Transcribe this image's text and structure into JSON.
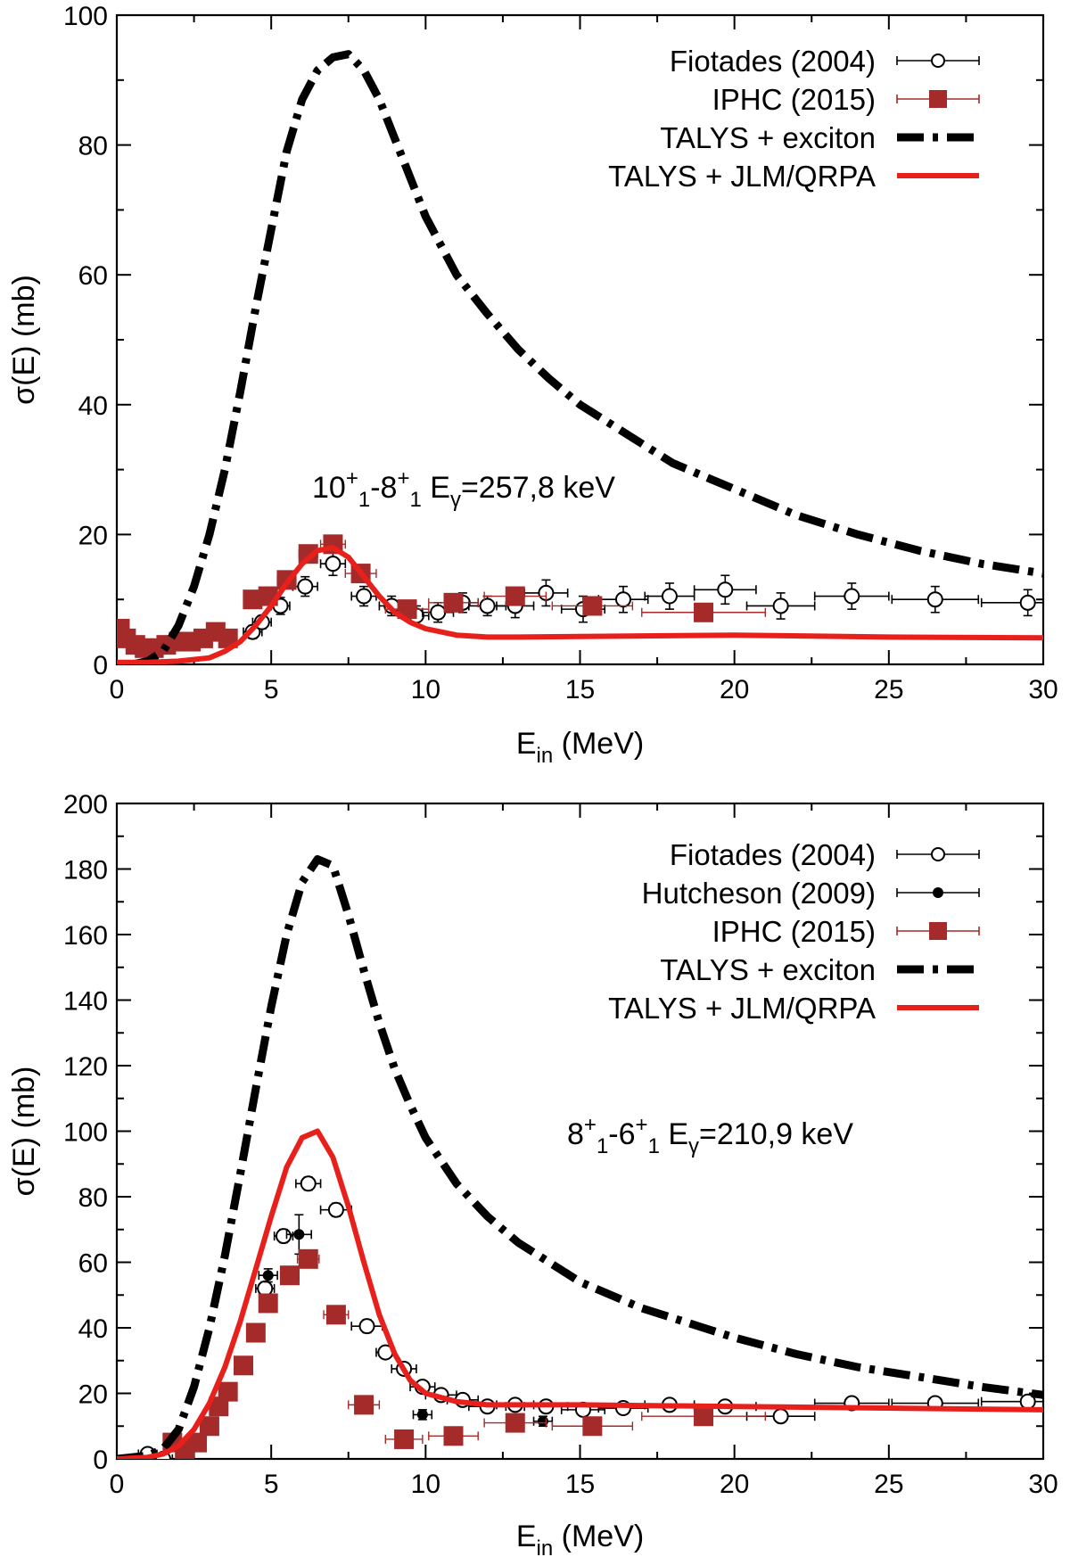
{
  "chart_data": [
    {
      "type": "line",
      "panel": "top",
      "title": "",
      "xlabel": "E_in (MeV)",
      "xlabel_main": "E",
      "xlabel_sub": "in",
      "xlabel_tail": " (MeV)",
      "ylabel": "σ(E) (mb)",
      "xlim": [
        0,
        30
      ],
      "ylim": [
        0,
        100
      ],
      "xticks": [
        0,
        5,
        10,
        15,
        20,
        25,
        30
      ],
      "yticks": [
        0,
        20,
        40,
        60,
        80,
        100
      ],
      "xtick_labels": [
        "0",
        "5",
        "10",
        "15",
        "20",
        "25",
        "30"
      ],
      "ytick_labels": [
        "0",
        "20",
        "40",
        "60",
        "80",
        "100"
      ],
      "legend_position": "top-right",
      "annotation": {
        "text": "10+1-8+1 Eγ=257,8 keV",
        "p1": "10",
        "p1_sup": "+",
        "p1_sub": "1",
        "dash": "-",
        "p2": "8",
        "p2_sup": "+",
        "p2_sub": "1",
        "e": " E",
        "e_sub": "γ",
        "e_tail": "=257,8 keV"
      },
      "series": [
        {
          "name": "Fiotades (2004)",
          "kind": "points-open-circle",
          "color": "#000000",
          "points": [
            {
              "x": 4.4,
              "y": 5,
              "xerr": 0.3,
              "yerr": 1
            },
            {
              "x": 4.7,
              "y": 6.5,
              "xerr": 0.3,
              "yerr": 1
            },
            {
              "x": 5.3,
              "y": 9,
              "xerr": 0.3,
              "yerr": 1.3
            },
            {
              "x": 6.1,
              "y": 12,
              "xerr": 0.4,
              "yerr": 1.5
            },
            {
              "x": 7.0,
              "y": 15.5,
              "xerr": 0.4,
              "yerr": 1.8
            },
            {
              "x": 8.0,
              "y": 10.5,
              "xerr": 0.4,
              "yerr": 1.5
            },
            {
              "x": 8.9,
              "y": 9,
              "xerr": 0.4,
              "yerr": 1.5
            },
            {
              "x": 9.7,
              "y": 7.5,
              "xerr": 0.4,
              "yerr": 1.5
            },
            {
              "x": 10.4,
              "y": 8,
              "xerr": 0.5,
              "yerr": 1.5
            },
            {
              "x": 11.2,
              "y": 9.5,
              "xerr": 0.5,
              "yerr": 1.5
            },
            {
              "x": 12.0,
              "y": 9,
              "xerr": 0.6,
              "yerr": 1.5
            },
            {
              "x": 12.9,
              "y": 9,
              "xerr": 0.6,
              "yerr": 1.8
            },
            {
              "x": 13.9,
              "y": 11,
              "xerr": 0.7,
              "yerr": 2
            },
            {
              "x": 15.1,
              "y": 8.5,
              "xerr": 0.7,
              "yerr": 2
            },
            {
              "x": 16.4,
              "y": 10,
              "xerr": 0.8,
              "yerr": 2
            },
            {
              "x": 17.9,
              "y": 10.5,
              "xerr": 0.8,
              "yerr": 2
            },
            {
              "x": 19.7,
              "y": 11.5,
              "xerr": 1.0,
              "yerr": 2.2
            },
            {
              "x": 21.5,
              "y": 9,
              "xerr": 1.1,
              "yerr": 2
            },
            {
              "x": 23.8,
              "y": 10.5,
              "xerr": 1.2,
              "yerr": 2
            },
            {
              "x": 26.5,
              "y": 10,
              "xerr": 1.4,
              "yerr": 2
            },
            {
              "x": 29.5,
              "y": 9.5,
              "xerr": 1.5,
              "yerr": 2
            }
          ]
        },
        {
          "name": "IPHC (2015)",
          "kind": "points-filled-square",
          "color": "#a52a2a",
          "points": [
            {
              "x": 0.1,
              "y": 5.5,
              "xerr": 0.1
            },
            {
              "x": 0.3,
              "y": 4,
              "xerr": 0.1
            },
            {
              "x": 0.6,
              "y": 3,
              "xerr": 0.1
            },
            {
              "x": 0.9,
              "y": 2.5,
              "xerr": 0.1
            },
            {
              "x": 1.2,
              "y": 2.5,
              "xerr": 0.1
            },
            {
              "x": 1.6,
              "y": 3,
              "xerr": 0.15
            },
            {
              "x": 2.0,
              "y": 3.5,
              "xerr": 0.15
            },
            {
              "x": 2.4,
              "y": 3.5,
              "xerr": 0.15
            },
            {
              "x": 2.8,
              "y": 4,
              "xerr": 0.15
            },
            {
              "x": 3.2,
              "y": 5,
              "xerr": 0.2
            },
            {
              "x": 3.6,
              "y": 4,
              "xerr": 0.2
            },
            {
              "x": 4.4,
              "y": 10,
              "xerr": 0.2
            },
            {
              "x": 4.9,
              "y": 10.5,
              "xerr": 0.25
            },
            {
              "x": 5.5,
              "y": 13,
              "xerr": 0.3
            },
            {
              "x": 6.2,
              "y": 17,
              "xerr": 0.3
            },
            {
              "x": 7.0,
              "y": 18.5,
              "xerr": 0.4
            },
            {
              "x": 7.9,
              "y": 14,
              "xerr": 0.5
            },
            {
              "x": 9.4,
              "y": 8.5,
              "xerr": 0.7
            },
            {
              "x": 10.9,
              "y": 9.5,
              "xerr": 0.8
            },
            {
              "x": 12.9,
              "y": 10.5,
              "xerr": 1.0
            },
            {
              "x": 15.4,
              "y": 9,
              "xerr": 1.3
            },
            {
              "x": 19.0,
              "y": 8,
              "xerr": 2.0
            }
          ]
        },
        {
          "name": "TALYS + exciton",
          "kind": "line-dashdot",
          "color": "#000000",
          "x": [
            0.5,
            1.0,
            1.5,
            2.0,
            2.5,
            3.0,
            3.5,
            4.0,
            4.5,
            5.0,
            5.5,
            6.0,
            6.5,
            7.0,
            7.5,
            8.0,
            8.5,
            9.0,
            9.5,
            10.0,
            11.0,
            12.0,
            13.0,
            14.0,
            15.0,
            16.0,
            17.0,
            18.0,
            19.0,
            20.0,
            22.0,
            24.0,
            26.0,
            28.0,
            30.0
          ],
          "y": [
            0,
            0.5,
            2,
            6,
            12,
            20,
            30,
            42,
            55,
            67,
            79,
            87,
            91.5,
            93.5,
            94,
            91.5,
            87,
            81,
            75,
            69,
            60,
            54,
            48.5,
            44,
            40,
            37,
            34,
            31,
            29,
            27,
            23,
            20,
            17.5,
            15.5,
            14
          ]
        },
        {
          "name": "TALYS + JLM/QRPA",
          "kind": "line-solid",
          "color": "#e8201c",
          "x": [
            0,
            1,
            2,
            3,
            3.5,
            4,
            4.5,
            5,
            5.5,
            6,
            6.5,
            7,
            7.5,
            8,
            8.5,
            9,
            9.5,
            10,
            11,
            12,
            13,
            15,
            20,
            25,
            30
          ],
          "y": [
            0.3,
            0.3,
            0.5,
            1,
            2,
            3.5,
            6,
            9,
            12.5,
            15.5,
            17.5,
            18,
            16.5,
            13.5,
            10.5,
            8,
            6.5,
            5.5,
            4.5,
            4.2,
            4.2,
            4.3,
            4.5,
            4.2,
            4.1
          ]
        }
      ]
    },
    {
      "type": "line",
      "panel": "bottom",
      "title": "",
      "xlabel": "E_in (MeV)",
      "xlabel_main": "E",
      "xlabel_sub": "in",
      "xlabel_tail": " (MeV)",
      "ylabel": "σ(E) (mb)",
      "xlim": [
        0,
        30
      ],
      "ylim": [
        0,
        200
      ],
      "xticks": [
        0,
        5,
        10,
        15,
        20,
        25,
        30
      ],
      "yticks": [
        0,
        20,
        40,
        60,
        80,
        100,
        120,
        140,
        160,
        180,
        200
      ],
      "xtick_labels": [
        "0",
        "5",
        "10",
        "15",
        "20",
        "25",
        "30"
      ],
      "ytick_labels": [
        "0",
        "20",
        "40",
        "60",
        "80",
        "100",
        "120",
        "140",
        "160",
        "180",
        "200"
      ],
      "legend_position": "top-right",
      "annotation": {
        "text": "8+1-6+1 Eγ=210,9 keV",
        "p1": "8",
        "p1_sup": "+",
        "p1_sub": "1",
        "dash": "-",
        "p2": "6",
        "p2_sup": "+",
        "p2_sub": "1",
        "e": " E",
        "e_sub": "γ",
        "e_tail": "=210,9 keV"
      },
      "series": [
        {
          "name": "Fiotades (2004)",
          "kind": "points-open-circle",
          "color": "#000000",
          "points": [
            {
              "x": 1.0,
              "y": 1.5,
              "xerr": 0.3,
              "yerr": 1
            },
            {
              "x": 1.5,
              "y": 0,
              "xerr": 0.3,
              "yerr": 1
            },
            {
              "x": 4.8,
              "y": 52,
              "xerr": 0.3,
              "yerr": 2
            },
            {
              "x": 5.4,
              "y": 68,
              "xerr": 0.3,
              "yerr": 2
            },
            {
              "x": 6.2,
              "y": 84,
              "xerr": 0.4,
              "yerr": 2
            },
            {
              "x": 7.1,
              "y": 76,
              "xerr": 0.5,
              "yerr": 2
            },
            {
              "x": 8.1,
              "y": 40.5,
              "xerr": 0.5,
              "yerr": 2
            },
            {
              "x": 8.7,
              "y": 32.5,
              "xerr": 0.3,
              "yerr": 1.5
            },
            {
              "x": 9.3,
              "y": 27.5,
              "xerr": 0.4,
              "yerr": 1.5
            },
            {
              "x": 9.9,
              "y": 22,
              "xerr": 0.4,
              "yerr": 1.5
            },
            {
              "x": 10.5,
              "y": 19.5,
              "xerr": 0.5,
              "yerr": 1.5
            },
            {
              "x": 11.2,
              "y": 18,
              "xerr": 0.5,
              "yerr": 1.5
            },
            {
              "x": 12.0,
              "y": 16,
              "xerr": 0.6,
              "yerr": 1.5
            },
            {
              "x": 12.9,
              "y": 16.5,
              "xerr": 0.6,
              "yerr": 1.5
            },
            {
              "x": 13.9,
              "y": 16,
              "xerr": 0.7,
              "yerr": 1.5
            },
            {
              "x": 15.1,
              "y": 15,
              "xerr": 0.7,
              "yerr": 1.5
            },
            {
              "x": 16.4,
              "y": 15.5,
              "xerr": 0.8,
              "yerr": 1.5
            },
            {
              "x": 17.9,
              "y": 16.5,
              "xerr": 0.8,
              "yerr": 1.5
            },
            {
              "x": 19.7,
              "y": 16,
              "xerr": 1.0,
              "yerr": 1.5
            },
            {
              "x": 21.5,
              "y": 13,
              "xerr": 1.1,
              "yerr": 1.5
            },
            {
              "x": 23.8,
              "y": 17,
              "xerr": 1.2,
              "yerr": 1.5
            },
            {
              "x": 26.5,
              "y": 17,
              "xerr": 1.4,
              "yerr": 1.5
            },
            {
              "x": 29.5,
              "y": 17.5,
              "xerr": 1.5,
              "yerr": 1.5
            }
          ]
        },
        {
          "name": "Hutcheson (2009)",
          "kind": "points-filled-circle",
          "color": "#000000",
          "points": [
            {
              "x": 4.9,
              "y": 56,
              "xerr": 0.3,
              "yerr": 2
            },
            {
              "x": 5.9,
              "y": 68.5,
              "xerr": 0.4,
              "yerr": 6
            },
            {
              "x": 9.9,
              "y": 13.5,
              "xerr": 0.3,
              "yerr": 1.5
            },
            {
              "x": 13.8,
              "y": 11.5,
              "xerr": 0.3,
              "yerr": 1.5
            }
          ]
        },
        {
          "name": "IPHC (2015)",
          "kind": "points-filled-square",
          "color": "#a52a2a",
          "points": [
            {
              "x": 1.8,
              "y": 5,
              "xerr": 0.15
            },
            {
              "x": 2.2,
              "y": 3,
              "xerr": 0.15
            },
            {
              "x": 2.6,
              "y": 5,
              "xerr": 0.15
            },
            {
              "x": 3.0,
              "y": 10,
              "xerr": 0.15
            },
            {
              "x": 3.3,
              "y": 16,
              "xerr": 0.15
            },
            {
              "x": 3.6,
              "y": 20.5,
              "xerr": 0.15
            },
            {
              "x": 4.1,
              "y": 28.5,
              "xerr": 0.2
            },
            {
              "x": 4.5,
              "y": 38.5,
              "xerr": 0.2
            },
            {
              "x": 4.9,
              "y": 47.5,
              "xerr": 0.25
            },
            {
              "x": 5.6,
              "y": 56,
              "xerr": 0.3
            },
            {
              "x": 6.2,
              "y": 61,
              "xerr": 0.35
            },
            {
              "x": 7.1,
              "y": 44,
              "xerr": 0.4
            },
            {
              "x": 8.0,
              "y": 16.5,
              "xerr": 0.5
            },
            {
              "x": 9.3,
              "y": 6,
              "xerr": 0.6
            },
            {
              "x": 10.9,
              "y": 7,
              "xerr": 0.8
            },
            {
              "x": 12.9,
              "y": 11,
              "xerr": 1.0
            },
            {
              "x": 15.4,
              "y": 10,
              "xerr": 1.3
            },
            {
              "x": 19.0,
              "y": 13,
              "xerr": 2.0
            }
          ]
        },
        {
          "name": "TALYS + exciton",
          "kind": "line-dashdot",
          "color": "#000000",
          "x": [
            0,
            1.0,
            1.5,
            2.0,
            2.5,
            3.0,
            3.5,
            4.0,
            4.5,
            5.0,
            5.5,
            6.0,
            6.5,
            7.0,
            7.5,
            8.0,
            8.5,
            9.0,
            9.5,
            10.0,
            11.0,
            12.0,
            13.0,
            14.0,
            15.0,
            16.0,
            17.0,
            18.0,
            19.0,
            20.0,
            22.0,
            24.0,
            26.0,
            28.0,
            30.0
          ],
          "y": [
            0,
            1,
            3,
            9,
            22,
            40,
            62,
            87,
            113,
            138,
            160,
            176,
            183,
            181,
            166,
            149,
            133,
            119,
            108,
            98,
            84,
            74,
            66,
            60,
            54,
            50,
            46,
            43,
            40,
            37,
            32,
            28,
            25,
            22,
            19.5
          ]
        },
        {
          "name": "TALYS + JLM/QRPA",
          "kind": "line-solid",
          "color": "#e8201c",
          "x": [
            0,
            1.0,
            1.5,
            2.0,
            2.5,
            3.0,
            3.5,
            4.0,
            4.5,
            5.0,
            5.5,
            6.0,
            6.5,
            7.0,
            7.5,
            8.0,
            8.5,
            9.0,
            9.5,
            10.0,
            11.0,
            12.0,
            13.0,
            15.0,
            20.0,
            25.0,
            30.0
          ],
          "y": [
            0,
            0.5,
            1.5,
            4,
            9,
            17,
            28,
            42,
            58,
            74,
            89,
            98,
            100,
            92,
            77,
            60,
            44,
            32,
            24,
            20,
            17.5,
            16.5,
            16.5,
            16.5,
            16,
            15.5,
            15
          ]
        }
      ]
    }
  ]
}
